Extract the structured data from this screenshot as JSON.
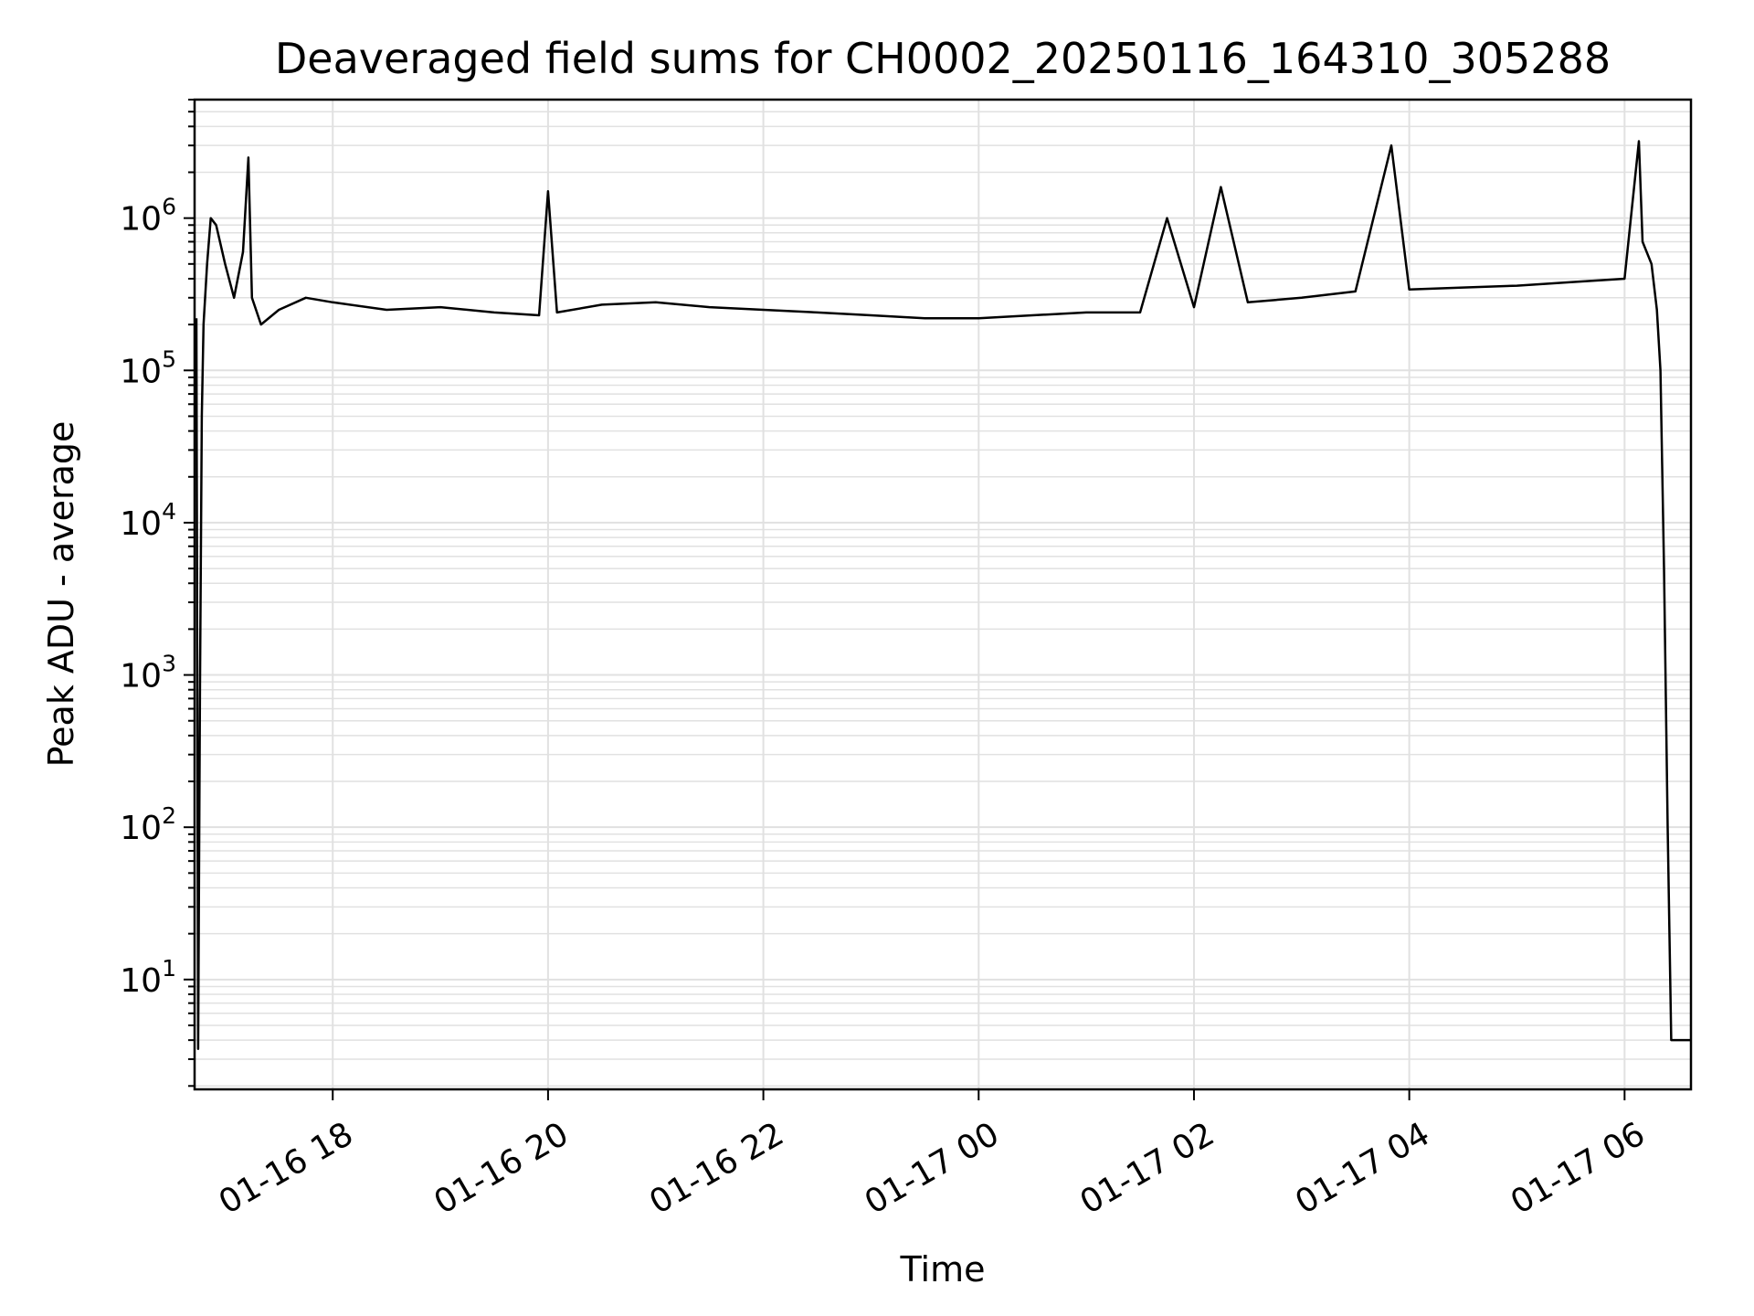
{
  "chart_data": {
    "type": "line",
    "title": "Deaveraged field sums for CH0002_20250116_164310_305288",
    "xlabel": "Time",
    "ylabel": "Peak ADU - average",
    "y_scale": "log",
    "ylim": [
      1.9,
      6000000
    ],
    "xlim": [
      "2025-01-16T16:43",
      "2025-01-17T06:37"
    ],
    "x_ticks": [
      {
        "t": "2025-01-16T18:00",
        "label": "01-16 18"
      },
      {
        "t": "2025-01-16T20:00",
        "label": "01-16 20"
      },
      {
        "t": "2025-01-16T22:00",
        "label": "01-16 22"
      },
      {
        "t": "2025-01-17T00:00",
        "label": "01-17 00"
      },
      {
        "t": "2025-01-17T02:00",
        "label": "01-17 02"
      },
      {
        "t": "2025-01-17T04:00",
        "label": "01-17 04"
      },
      {
        "t": "2025-01-17T06:00",
        "label": "01-17 06"
      }
    ],
    "y_ticks": [
      {
        "value": 10,
        "base": "10",
        "exp": "1"
      },
      {
        "value": 100,
        "base": "10",
        "exp": "2"
      },
      {
        "value": 1000,
        "base": "10",
        "exp": "3"
      },
      {
        "value": 10000,
        "base": "10",
        "exp": "4"
      },
      {
        "value": 100000,
        "base": "10",
        "exp": "5"
      },
      {
        "value": 1000000,
        "base": "10",
        "exp": "6"
      }
    ],
    "grid": "major+minor",
    "line_color": "#000000",
    "grid_color": "#e1e1e1",
    "series": [
      {
        "x": [
          "2025-01-16T16:44",
          "2025-01-16T16:45",
          "2025-01-16T16:46",
          "2025-01-16T16:47",
          "2025-01-16T16:48",
          "2025-01-16T16:50",
          "2025-01-16T16:52",
          "2025-01-16T16:55",
          "2025-01-16T17:00",
          "2025-01-16T17:05",
          "2025-01-16T17:10",
          "2025-01-16T17:13",
          "2025-01-16T17:15",
          "2025-01-16T17:20",
          "2025-01-16T17:30",
          "2025-01-16T17:45",
          "2025-01-16T18:00",
          "2025-01-16T18:30",
          "2025-01-16T19:00",
          "2025-01-16T19:30",
          "2025-01-16T19:55",
          "2025-01-16T20:00",
          "2025-01-16T20:05",
          "2025-01-16T20:30",
          "2025-01-16T21:00",
          "2025-01-16T21:30",
          "2025-01-16T22:00",
          "2025-01-16T22:30",
          "2025-01-16T23:00",
          "2025-01-16T23:30",
          "2025-01-17T00:00",
          "2025-01-17T00:30",
          "2025-01-17T01:00",
          "2025-01-17T01:30",
          "2025-01-17T01:45",
          "2025-01-17T02:00",
          "2025-01-17T02:15",
          "2025-01-17T02:30",
          "2025-01-17T03:00",
          "2025-01-17T03:30",
          "2025-01-17T03:50",
          "2025-01-17T04:00",
          "2025-01-17T04:30",
          "2025-01-17T05:00",
          "2025-01-17T05:30",
          "2025-01-17T06:00",
          "2025-01-17T06:08",
          "2025-01-17T06:10",
          "2025-01-17T06:15",
          "2025-01-17T06:18",
          "2025-01-17T06:20",
          "2025-01-17T06:22",
          "2025-01-17T06:24",
          "2025-01-17T06:26",
          "2025-01-17T06:28",
          "2025-01-17T06:30",
          "2025-01-17T06:33",
          "2025-01-17T06:37"
        ],
        "y": [
          220000,
          3.5,
          800,
          50000,
          200000,
          500000,
          1000000,
          900000,
          500000,
          300000,
          600000,
          2500000,
          300000,
          200000,
          250000,
          300000,
          280000,
          250000,
          260000,
          240000,
          230000,
          1500000,
          240000,
          270000,
          280000,
          260000,
          250000,
          240000,
          230000,
          220000,
          220000,
          230000,
          240000,
          240000,
          1000000,
          260000,
          1600000,
          280000,
          300000,
          330000,
          3000000,
          340000,
          350000,
          360000,
          380000,
          400000,
          3200000,
          700000,
          500000,
          250000,
          100000,
          5000,
          100,
          4,
          4,
          4,
          4,
          4
        ]
      }
    ]
  }
}
